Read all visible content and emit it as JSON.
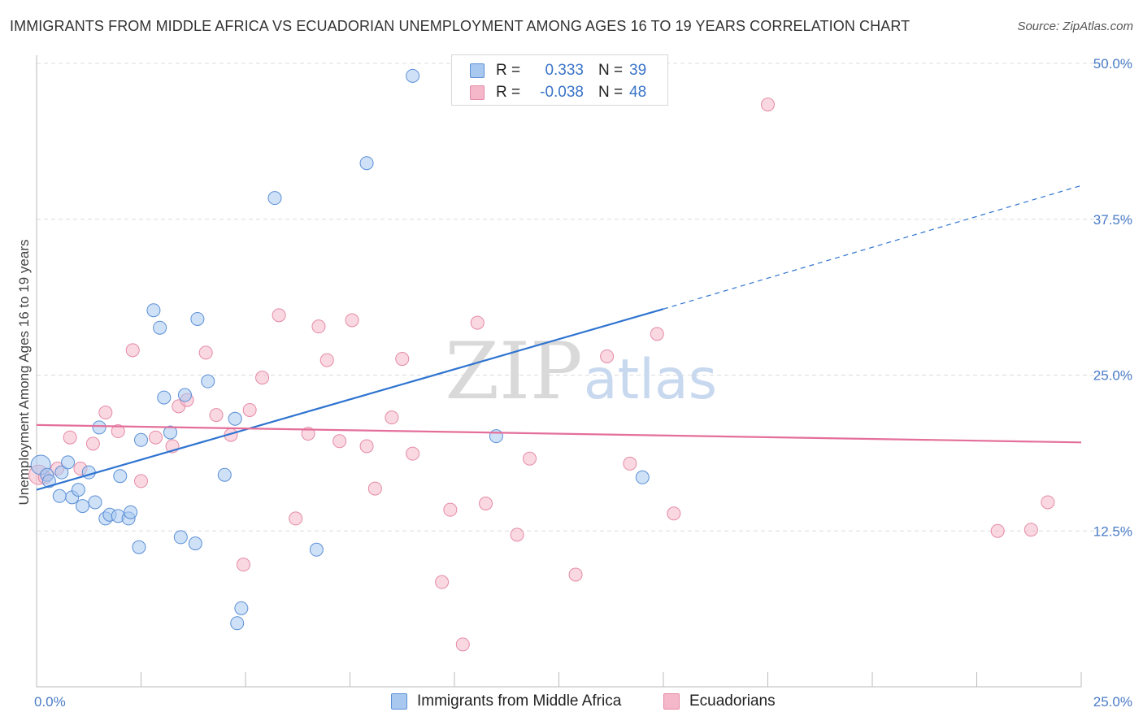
{
  "title": "IMMIGRANTS FROM MIDDLE AFRICA VS ECUADORIAN UNEMPLOYMENT AMONG AGES 16 TO 19 YEARS CORRELATION CHART",
  "source": "Source: ZipAtlas.com",
  "watermark": {
    "zip": "ZIP",
    "atlas": "atlas"
  },
  "legend": {
    "rows": [
      {
        "r_label": "R =",
        "r_value": "0.333",
        "n_label": "N =",
        "n_value": "39",
        "color": "#a8c8f0"
      },
      {
        "r_label": "R =",
        "r_value": "-0.038",
        "n_label": "N =",
        "n_value": "48",
        "color": "#f5b8cb"
      }
    ]
  },
  "bottom_legend": {
    "items": [
      {
        "label": "Immigrants from Middle Africa",
        "color": "#a8c8f0"
      },
      {
        "label": "Ecuadorians",
        "color": "#f5b8cb"
      }
    ]
  },
  "chart_data": {
    "type": "scatter",
    "title": "IMMIGRANTS FROM MIDDLE AFRICA VS ECUADORIAN UNEMPLOYMENT AMONG AGES 16 TO 19 YEARS CORRELATION CHART",
    "xlabel": "",
    "ylabel": "Unemployment Among Ages 16 to 19 years",
    "xlim": [
      0,
      25
    ],
    "ylim": [
      0,
      50
    ],
    "x_tick_labels": [
      "0.0%",
      "25.0%"
    ],
    "y_ticks": [
      12.5,
      25.0,
      37.5,
      50.0
    ],
    "y_tick_labels": [
      "12.5%",
      "25.0%",
      "37.5%",
      "50.0%"
    ],
    "grid": true,
    "series": [
      {
        "name": "Immigrants from Middle Africa",
        "color": "#a8c8f0",
        "stroke": "#5b8fd6",
        "trend_color": "#2f74d0",
        "trend": {
          "x0": 0.0,
          "y0": 15.8,
          "x1": 15.0,
          "y1": 30.3,
          "dash_to_x": 25.0,
          "dash_to_y": 40.2
        },
        "points": [
          [
            0.1,
            17.8
          ],
          [
            0.25,
            17.0
          ],
          [
            0.3,
            16.5
          ],
          [
            0.6,
            17.2
          ],
          [
            0.75,
            18.0
          ],
          [
            0.55,
            15.3
          ],
          [
            0.85,
            15.2
          ],
          [
            1.0,
            15.8
          ],
          [
            1.1,
            14.5
          ],
          [
            1.4,
            14.8
          ],
          [
            1.25,
            17.2
          ],
          [
            1.5,
            20.8
          ],
          [
            1.65,
            13.5
          ],
          [
            1.75,
            13.8
          ],
          [
            1.95,
            13.7
          ],
          [
            2.0,
            16.9
          ],
          [
            2.2,
            13.5
          ],
          [
            2.25,
            14.0
          ],
          [
            2.45,
            11.2
          ],
          [
            2.5,
            19.8
          ],
          [
            2.8,
            30.2
          ],
          [
            2.95,
            28.8
          ],
          [
            3.05,
            23.2
          ],
          [
            3.2,
            20.4
          ],
          [
            3.45,
            12.0
          ],
          [
            3.55,
            23.4
          ],
          [
            3.8,
            11.5
          ],
          [
            3.85,
            29.5
          ],
          [
            4.1,
            24.5
          ],
          [
            4.5,
            17.0
          ],
          [
            4.75,
            21.5
          ],
          [
            4.8,
            5.1
          ],
          [
            4.9,
            6.3
          ],
          [
            5.7,
            39.2
          ],
          [
            6.7,
            11.0
          ],
          [
            7.9,
            42.0
          ],
          [
            9.0,
            49.0
          ],
          [
            11.0,
            20.1
          ],
          [
            14.5,
            16.8
          ]
        ]
      },
      {
        "name": "Ecuadorians",
        "color": "#f5b8cb",
        "stroke": "#e48aa6",
        "trend_color": "#e46f9a",
        "trend": {
          "x0": 0.0,
          "y0": 21.0,
          "x1": 25.0,
          "y1": 19.6
        },
        "points": [
          [
            0.05,
            17.0
          ],
          [
            0.2,
            16.8
          ],
          [
            0.5,
            17.5
          ],
          [
            0.8,
            20.0
          ],
          [
            1.05,
            17.5
          ],
          [
            1.35,
            19.5
          ],
          [
            1.65,
            22.0
          ],
          [
            1.95,
            20.5
          ],
          [
            2.3,
            27.0
          ],
          [
            2.5,
            16.5
          ],
          [
            2.85,
            20.0
          ],
          [
            3.25,
            19.3
          ],
          [
            3.4,
            22.5
          ],
          [
            3.6,
            23.0
          ],
          [
            4.05,
            26.8
          ],
          [
            4.3,
            21.8
          ],
          [
            4.65,
            20.2
          ],
          [
            4.95,
            9.8
          ],
          [
            5.1,
            22.2
          ],
          [
            5.4,
            24.8
          ],
          [
            5.8,
            29.8
          ],
          [
            6.2,
            13.5
          ],
          [
            6.5,
            20.3
          ],
          [
            6.75,
            28.9
          ],
          [
            6.95,
            26.2
          ],
          [
            7.25,
            19.7
          ],
          [
            7.55,
            29.4
          ],
          [
            7.9,
            19.3
          ],
          [
            8.1,
            15.9
          ],
          [
            8.5,
            21.6
          ],
          [
            8.75,
            26.3
          ],
          [
            9.0,
            18.7
          ],
          [
            9.7,
            8.4
          ],
          [
            9.9,
            14.2
          ],
          [
            10.2,
            3.4
          ],
          [
            10.55,
            29.2
          ],
          [
            10.75,
            14.7
          ],
          [
            11.5,
            12.2
          ],
          [
            11.8,
            18.3
          ],
          [
            12.9,
            9.0
          ],
          [
            13.65,
            26.5
          ],
          [
            14.2,
            17.9
          ],
          [
            14.85,
            28.3
          ],
          [
            15.25,
            13.9
          ],
          [
            17.5,
            46.7
          ],
          [
            23.0,
            12.5
          ],
          [
            23.8,
            12.6
          ],
          [
            24.2,
            14.8
          ]
        ]
      }
    ]
  }
}
